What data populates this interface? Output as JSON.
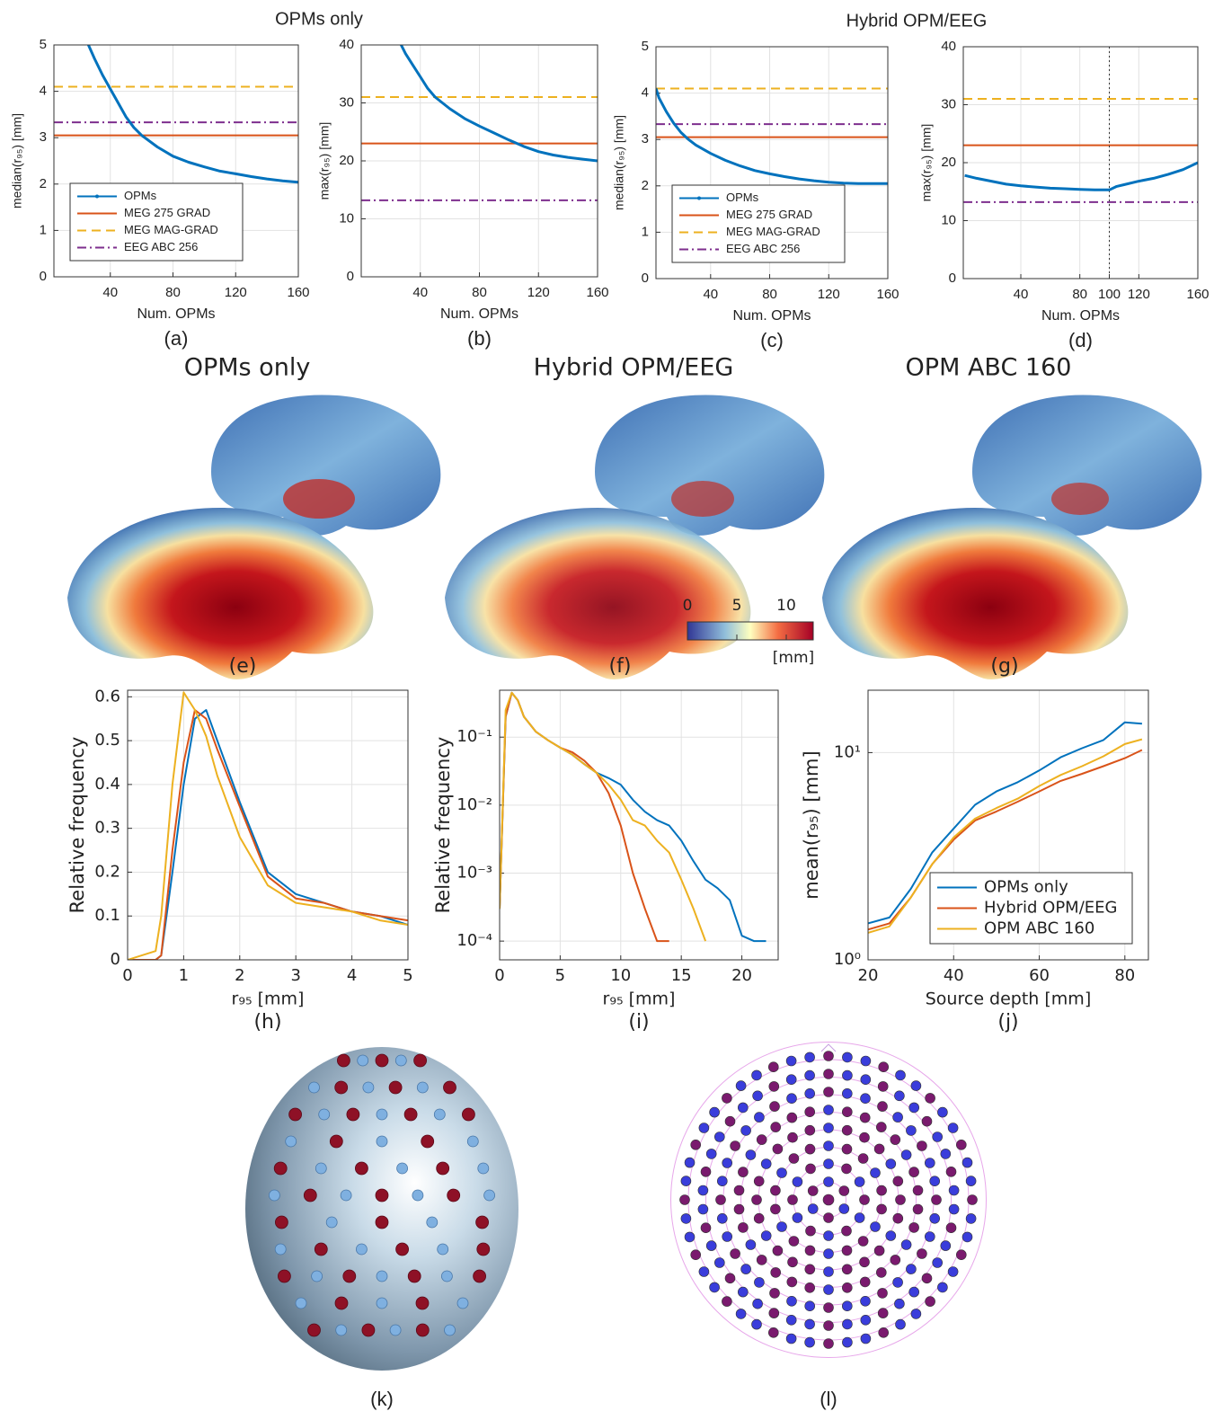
{
  "titles": {
    "top": [
      "OPMs only",
      "Hybrid OPM/EEG"
    ],
    "brains": [
      "OPMs only",
      "Hybrid OPM/EEG",
      "OPM ABC 160"
    ]
  },
  "panel_labels": [
    "(e)",
    "(f)",
    "(g)",
    "(k)",
    "(l)"
  ],
  "colorbar": {
    "lim": [
      0,
      10
    ],
    "ticks": [
      0,
      5,
      10
    ],
    "unit": "[mm]"
  },
  "chart_data": [
    {
      "type": "line",
      "panel_label": "(a)",
      "xlabel": "Num. OPMs",
      "ylabel": "median(r₉₅) [mm]",
      "xlim": [
        4,
        160
      ],
      "xticks": [
        40,
        80,
        120,
        160
      ],
      "ylim": [
        0,
        5
      ],
      "yticks": [
        0,
        1,
        2,
        3,
        4,
        5
      ],
      "grid": true,
      "legend": "lower left",
      "x": [
        26,
        30,
        35,
        40,
        45,
        50,
        55,
        60,
        70,
        80,
        90,
        100,
        110,
        120,
        130,
        140,
        150,
        160
      ],
      "series": [
        {
          "name": "OPMs",
          "color": "#0072bd",
          "values": [
            5.0,
            4.7,
            4.35,
            4.05,
            3.75,
            3.45,
            3.22,
            3.05,
            2.8,
            2.6,
            2.47,
            2.37,
            2.28,
            2.22,
            2.16,
            2.11,
            2.07,
            2.04
          ]
        }
      ],
      "hlines": [
        {
          "name": "MEG 275 GRAD",
          "color": "#d95319",
          "linestyle": "solid",
          "value": 3.05
        },
        {
          "name": "MEG MAG-GRAD",
          "color": "#edb120",
          "linestyle": "dashed",
          "value": 4.1
        },
        {
          "name": "EEG ABC 256",
          "color": "#7e2f8e",
          "linestyle": "dashdot",
          "value": 3.33
        }
      ]
    },
    {
      "type": "line",
      "panel_label": "(b)",
      "xlabel": "Num. OPMs",
      "ylabel": "max(r₉₅) [mm]",
      "xlim": [
        0,
        160
      ],
      "xticks": [
        40,
        80,
        120,
        160
      ],
      "ylim": [
        0,
        40
      ],
      "yticks": [
        0,
        10,
        20,
        30,
        40
      ],
      "grid": true,
      "x": [
        27,
        30,
        35,
        40,
        45,
        50,
        55,
        60,
        70,
        80,
        90,
        100,
        110,
        120,
        130,
        140,
        150,
        160
      ],
      "series": [
        {
          "color": "#0072bd",
          "values": [
            40,
            38.5,
            36.5,
            34.5,
            32.5,
            31,
            30,
            29,
            27.3,
            26,
            24.8,
            23.6,
            22.5,
            21.6,
            21,
            20.6,
            20.3,
            20
          ]
        }
      ],
      "hlines": [
        {
          "color": "#d95319",
          "linestyle": "solid",
          "value": 23
        },
        {
          "color": "#edb120",
          "linestyle": "dashed",
          "value": 31
        },
        {
          "color": "#7e2f8e",
          "linestyle": "dashdot",
          "value": 13.2
        }
      ]
    },
    {
      "type": "line",
      "panel_label": "(c)",
      "xlabel": "Num. OPMs",
      "ylabel": "median(r₉₅) [mm]",
      "xlim": [
        3,
        160
      ],
      "xticks": [
        40,
        80,
        120,
        160
      ],
      "ylim": [
        0,
        5
      ],
      "yticks": [
        0,
        1,
        2,
        3,
        4,
        5
      ],
      "grid": true,
      "legend": "lower left",
      "x": [
        3,
        5,
        10,
        15,
        20,
        25,
        30,
        40,
        50,
        60,
        70,
        80,
        90,
        100,
        110,
        120,
        130,
        140,
        150,
        160
      ],
      "series": [
        {
          "name": "OPMs",
          "color": "#0072bd",
          "values": [
            4.1,
            3.9,
            3.6,
            3.35,
            3.15,
            3.0,
            2.88,
            2.7,
            2.55,
            2.43,
            2.33,
            2.26,
            2.2,
            2.15,
            2.11,
            2.08,
            2.06,
            2.05,
            2.05,
            2.05
          ]
        }
      ],
      "hlines": [
        {
          "name": "MEG 275 GRAD",
          "color": "#d95319",
          "linestyle": "solid",
          "value": 3.05
        },
        {
          "name": "MEG MAG-GRAD",
          "color": "#edb120",
          "linestyle": "dashed",
          "value": 4.1
        },
        {
          "name": "EEG ABC 256",
          "color": "#7e2f8e",
          "linestyle": "dashdot",
          "value": 3.33
        }
      ]
    },
    {
      "type": "line",
      "panel_label": "(d)",
      "xlabel": "Num. OPMs",
      "ylabel": "max(r₉₅) [mm]",
      "xlim": [
        1,
        160
      ],
      "xticks": [
        40,
        80,
        100,
        120,
        160
      ],
      "ylim": [
        0,
        40
      ],
      "yticks": [
        0,
        10,
        20,
        30,
        40
      ],
      "grid": true,
      "x": [
        2,
        10,
        20,
        30,
        40,
        50,
        60,
        70,
        80,
        90,
        100,
        105,
        110,
        120,
        130,
        140,
        150,
        160
      ],
      "series": [
        {
          "color": "#0072bd",
          "values": [
            17.8,
            17.3,
            16.8,
            16.3,
            16.0,
            15.8,
            15.6,
            15.5,
            15.4,
            15.3,
            15.3,
            15.9,
            16.2,
            16.8,
            17.3,
            18.0,
            18.8,
            20.0
          ]
        }
      ],
      "hlines": [
        {
          "color": "#d95319",
          "linestyle": "solid",
          "value": 23
        },
        {
          "color": "#edb120",
          "linestyle": "dashed",
          "value": 31
        },
        {
          "color": "#7e2f8e",
          "linestyle": "dashdot",
          "value": 13.2
        }
      ],
      "vlines": [
        100
      ]
    },
    {
      "type": "line",
      "panel_label": "(h)",
      "xlabel": "r₉₅ [mm]",
      "ylabel": "Relative frequency",
      "xlim": [
        0,
        5
      ],
      "xticks": [
        0,
        1,
        2,
        3,
        4,
        5
      ],
      "ylim": [
        0,
        0.615
      ],
      "yticks": [
        0,
        0.1,
        0.2,
        0.3,
        0.4,
        0.5,
        0.6
      ],
      "grid": true,
      "x": [
        0,
        0.5,
        0.6,
        0.8,
        1,
        1.2,
        1.4,
        1.6,
        2,
        2.5,
        3,
        3.5,
        4,
        4.5,
        5
      ],
      "series": [
        {
          "color": "#0072bd",
          "values": [
            0,
            0,
            0.01,
            0.2,
            0.4,
            0.55,
            0.57,
            0.5,
            0.36,
            0.2,
            0.15,
            0.13,
            0.11,
            0.1,
            0.08
          ]
        },
        {
          "color": "#d95319",
          "values": [
            0,
            0,
            0.01,
            0.25,
            0.45,
            0.57,
            0.55,
            0.48,
            0.35,
            0.19,
            0.14,
            0.13,
            0.11,
            0.1,
            0.09
          ]
        },
        {
          "color": "#edb120",
          "values": [
            0,
            0.02,
            0.1,
            0.4,
            0.61,
            0.57,
            0.51,
            0.42,
            0.28,
            0.17,
            0.13,
            0.12,
            0.11,
            0.09,
            0.08
          ]
        }
      ]
    },
    {
      "type": "line",
      "panel_label": "(i)",
      "xlabel": "r₉₅ [mm]",
      "ylabel": "Relative frequency",
      "xlim": [
        0,
        23
      ],
      "xticks": [
        0,
        5,
        10,
        15,
        20
      ],
      "yscale": "log",
      "ylim": [
        5.3e-05,
        0.49
      ],
      "yticks": [
        {
          "value": 0.0001,
          "label": "10⁻⁴"
        },
        {
          "value": 0.001,
          "label": "10⁻³"
        },
        {
          "value": 0.01,
          "label": "10⁻²"
        },
        {
          "value": 0.1,
          "label": "10⁻¹"
        }
      ],
      "grid": true,
      "x": [
        0,
        0.5,
        1,
        1.5,
        2,
        3,
        4,
        5,
        6,
        7,
        8,
        9,
        10,
        11,
        12,
        13,
        14,
        15,
        16,
        17,
        18,
        19,
        20,
        21,
        22
      ],
      "series": [
        {
          "color": "#0072bd",
          "values": [
            0.0003,
            0.2,
            0.45,
            0.35,
            0.2,
            0.12,
            0.09,
            0.07,
            0.055,
            0.04,
            0.03,
            0.025,
            0.02,
            0.012,
            0.008,
            0.006,
            0.005,
            0.003,
            0.0015,
            0.0008,
            0.0006,
            0.0004,
            0.00012,
            0.0001,
            0.0001
          ]
        },
        {
          "color": "#d95319",
          "values": [
            0.0003,
            0.2,
            0.45,
            0.35,
            0.2,
            0.12,
            0.09,
            0.07,
            0.06,
            0.045,
            0.03,
            0.015,
            0.005,
            0.001,
            0.0003,
            0.0001,
            0.0001,
            null,
            null,
            null,
            null,
            null,
            null,
            null,
            null
          ]
        },
        {
          "color": "#edb120",
          "values": [
            0.0003,
            0.25,
            0.45,
            0.35,
            0.2,
            0.12,
            0.09,
            0.07,
            0.055,
            0.04,
            0.03,
            0.02,
            0.012,
            0.006,
            0.005,
            0.003,
            0.002,
            0.0008,
            0.0003,
            0.0001,
            null,
            null,
            null,
            null,
            null
          ]
        }
      ]
    },
    {
      "type": "line",
      "panel_label": "(j)",
      "xlabel": "Source depth [mm]",
      "ylabel": "mean(r₉₅) [mm]",
      "xlim": [
        20,
        85.5
      ],
      "xticks": [
        20,
        40,
        60,
        80
      ],
      "yscale": "log",
      "ylim": [
        1,
        20
      ],
      "yticks": [
        {
          "value": 1,
          "label": "10⁰"
        },
        {
          "value": 10,
          "label": "10¹"
        }
      ],
      "grid": true,
      "legend": "lower right",
      "x": [
        20,
        25,
        30,
        35,
        40,
        45,
        50,
        55,
        60,
        65,
        70,
        75,
        80,
        84
      ],
      "series": [
        {
          "name": "OPMs only",
          "color": "#0072bd",
          "values": [
            1.5,
            1.6,
            2.2,
            3.3,
            4.3,
            5.6,
            6.5,
            7.2,
            8.2,
            9.5,
            10.5,
            11.5,
            14,
            13.8
          ]
        },
        {
          "name": "Hybrid OPM/EEG",
          "color": "#d95319",
          "values": [
            1.4,
            1.5,
            2,
            2.9,
            3.8,
            4.7,
            5.2,
            5.8,
            6.5,
            7.3,
            7.9,
            8.6,
            9.4,
            10.3
          ]
        },
        {
          "name": "OPM ABC 160",
          "color": "#edb120",
          "values": [
            1.35,
            1.45,
            2.0,
            2.9,
            3.9,
            4.8,
            5.4,
            6.0,
            6.9,
            7.8,
            8.6,
            9.6,
            11,
            11.6
          ]
        }
      ]
    }
  ]
}
